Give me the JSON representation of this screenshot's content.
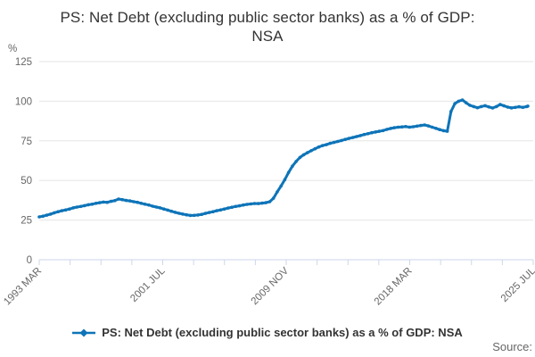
{
  "title": {
    "line1": "PS: Net Debt (excluding public sector banks) as a % of GDP:",
    "line2": "NSA"
  },
  "legend": {
    "label": "PS: Net Debt (excluding public sector banks) as a % of GDP: NSA"
  },
  "source": {
    "label": "Source:"
  },
  "colors": {
    "series": "#0e74b8",
    "grid": "#e6e6e6",
    "axis": "#ccd6eb",
    "tick_label": "#666666",
    "title_text": "#333333"
  },
  "chart_data": {
    "type": "line",
    "title": "PS: Net Debt (excluding public sector banks) as a % of GDP: NSA",
    "ylabel": "%",
    "ylim": [
      0,
      125
    ],
    "yticks": [
      0,
      25,
      50,
      75,
      100,
      125
    ],
    "grid": "horizontal",
    "legend_position": "bottom",
    "x_axis": {
      "tick_count": 17,
      "labeled_tick_indexes": [
        0,
        4,
        8,
        12,
        16
      ],
      "tick_labels": [
        "1993 MAR",
        "2001 JUL",
        "2009 NOV",
        "2018 MAR",
        "2025 JUL"
      ]
    },
    "series": [
      {
        "name": "PS: Net Debt (excluding public sector banks) as a % of GDP: NSA",
        "color": "#0e74b8",
        "start": "1993 MAR",
        "end": "2025 JUL",
        "sampling": "quarterly (monthly series sampled every 3 months, last point 2025 JUL)",
        "total_months": 388,
        "values": [
          27.0,
          27.5,
          28.1,
          28.8,
          29.6,
          30.3,
          30.9,
          31.4,
          32.0,
          32.7,
          33.2,
          33.6,
          34.1,
          34.7,
          35.0,
          35.6,
          36.0,
          36.4,
          36.2,
          36.8,
          37.3,
          38.3,
          37.9,
          37.4,
          37.1,
          36.6,
          36.2,
          35.6,
          35.0,
          34.5,
          33.8,
          33.2,
          32.7,
          32.0,
          31.3,
          30.6,
          29.9,
          29.3,
          28.8,
          28.3,
          27.9,
          28.0,
          28.2,
          28.6,
          29.2,
          29.8,
          30.3,
          30.9,
          31.4,
          32.0,
          32.6,
          33.1,
          33.6,
          34.0,
          34.5,
          34.9,
          35.2,
          35.5,
          35.4,
          35.7,
          36.0,
          36.6,
          38.8,
          42.8,
          46.5,
          50.5,
          55.0,
          59.0,
          62.0,
          64.5,
          66.2,
          67.5,
          68.8,
          70.0,
          71.1,
          72.0,
          72.6,
          73.4,
          74.0,
          74.6,
          75.2,
          75.9,
          76.5,
          77.1,
          77.7,
          78.3,
          79.0,
          79.5,
          80.1,
          80.6,
          81.0,
          81.5,
          82.2,
          82.8,
          83.3,
          83.6,
          83.8,
          84.0,
          83.6,
          83.9,
          84.3,
          84.7,
          85.0,
          84.4,
          83.6,
          82.9,
          82.1,
          81.4,
          81.0,
          93.5,
          98.5,
          100.0,
          100.8,
          99.0,
          97.4,
          96.6,
          95.9,
          96.6,
          97.2,
          96.4,
          95.7,
          96.6,
          97.9,
          97.1,
          96.3,
          95.8,
          96.1,
          96.5,
          96.1,
          96.6,
          96.9
        ]
      }
    ]
  }
}
